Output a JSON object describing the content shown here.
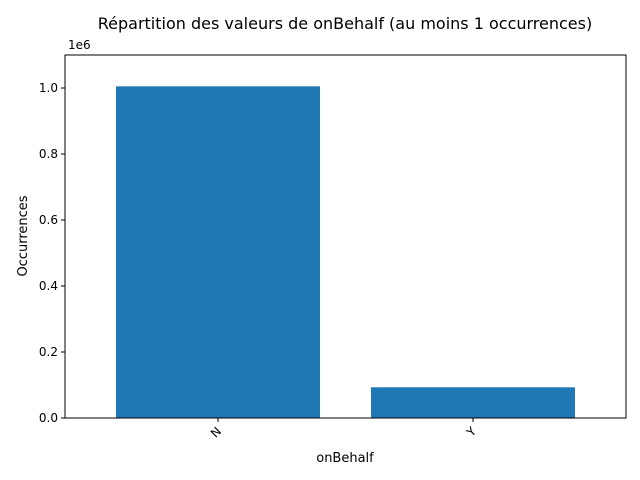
{
  "chart_data": {
    "type": "bar",
    "title": "Répartition des valeurs de onBehalf (au moins 1 occurrences)",
    "xlabel": "onBehalf",
    "ylabel": "Occurrences",
    "categories": [
      "N",
      "Y"
    ],
    "values": [
      1005000,
      93000
    ],
    "ylim": [
      0,
      1100000
    ],
    "yticks": [
      0,
      200000,
      400000,
      600000,
      800000,
      1000000
    ],
    "ytick_labels": [
      "0.0",
      "0.2",
      "0.4",
      "0.6",
      "0.8",
      "1.0"
    ],
    "y_offset_label": "1e6",
    "bar_color": "#1f77b4",
    "grid": false,
    "xtick_rotation": "45° counter-clockwise"
  }
}
